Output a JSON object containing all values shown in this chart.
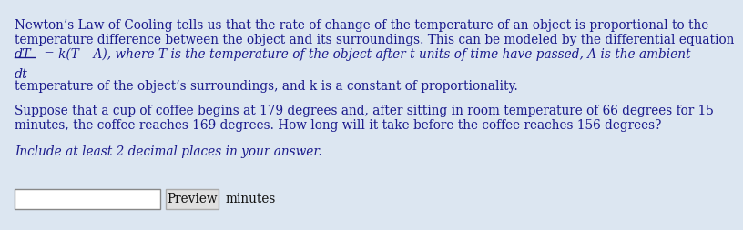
{
  "bg_color": "#dce6f1",
  "text_color": "#1a1a8c",
  "text_color_black": "#1a1a1a",
  "font_size_body": 9.8,
  "line1": "Newton’s Law of Cooling tells us that the rate of change of the temperature of an object is proportional to the",
  "line2": "temperature difference between the object and its surroundings. This can be modeled by the differential equation",
  "frac_num": "dT",
  "frac_den": "dt",
  "line3_eq": " = k(T – A), where T is the temperature of the object after t units of time have passed, A is the ambient",
  "line4": "temperature of the object’s surroundings, and k is a constant of proportionality.",
  "line5": "Suppose that a cup of coffee begins at 179 degrees and, after sitting in room temperature of 66 degrees for 15",
  "line6": "minutes, the coffee reaches 169 degrees. How long will it take before the coffee reaches 156 degrees?",
  "line7": "Include at least 2 decimal places in your answer.",
  "minutes_label": "minutes",
  "preview_label": "Preview"
}
